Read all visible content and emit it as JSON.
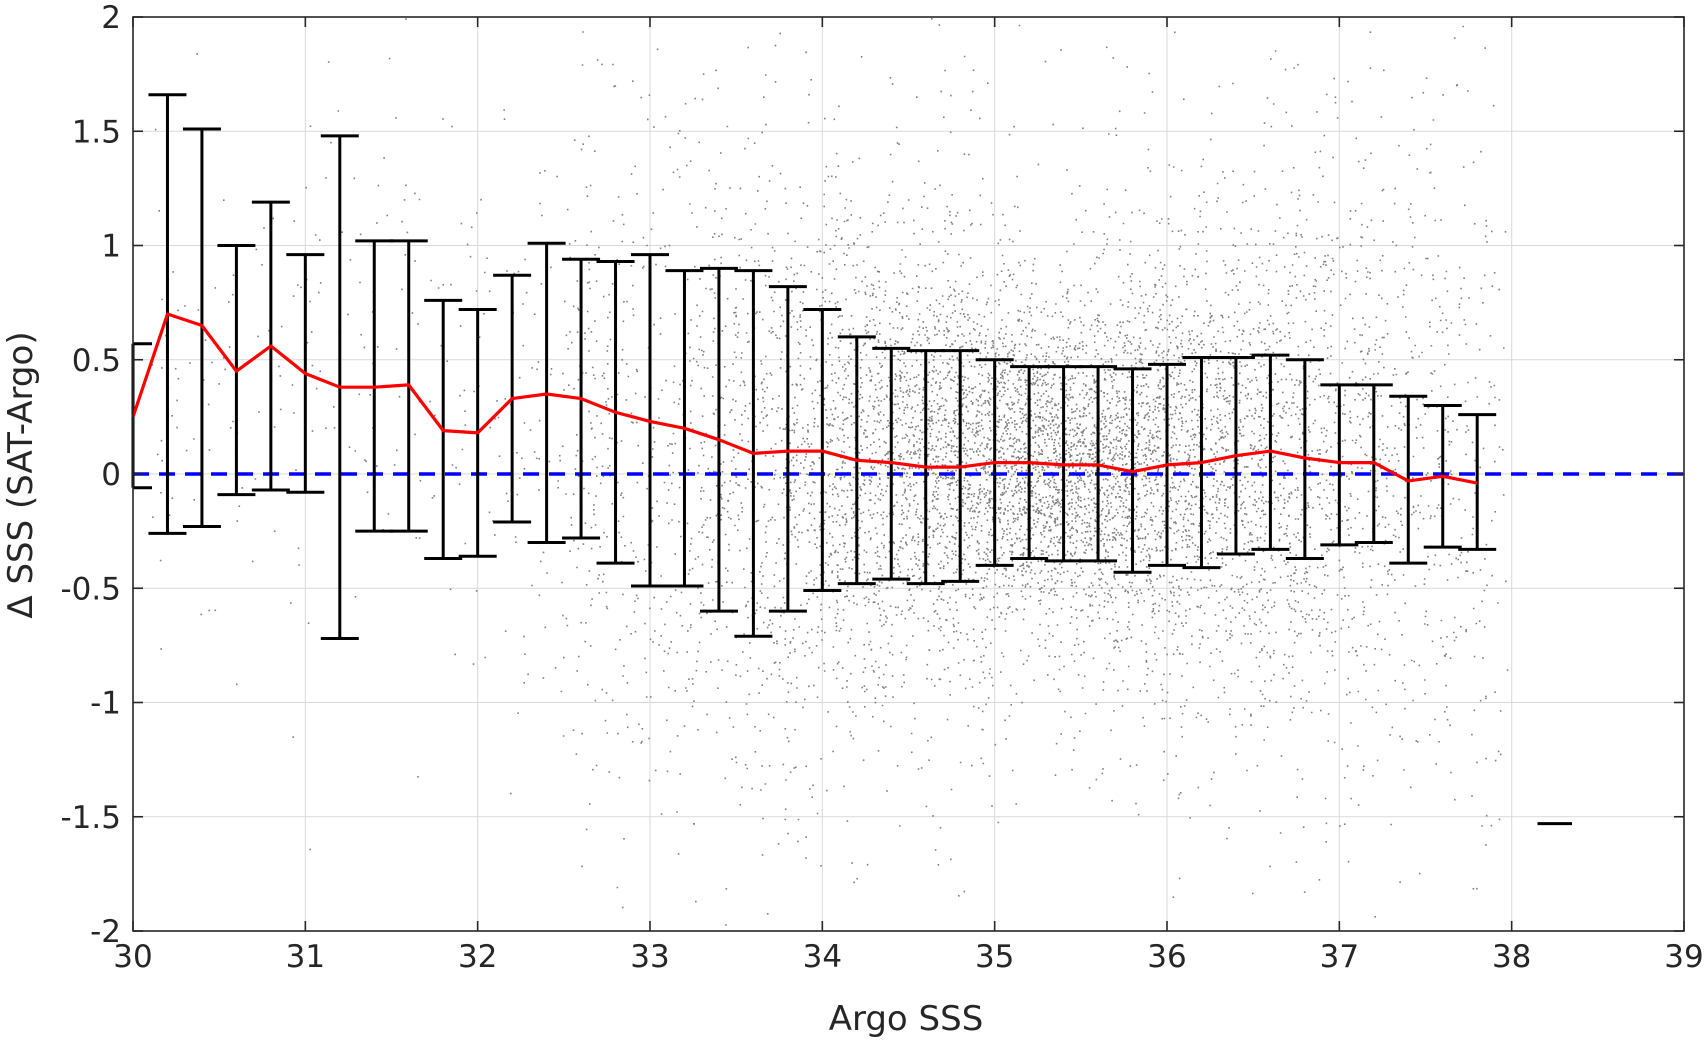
{
  "chart_data": {
    "type": "scatter",
    "title": "",
    "xlabel": "Argo SSS",
    "ylabel": "Δ SSS (SAT-Argo)",
    "xlim": [
      30,
      39
    ],
    "ylim": [
      -2,
      2
    ],
    "xticks": [
      "30",
      "31",
      "32",
      "33",
      "34",
      "35",
      "36",
      "37",
      "38",
      "39"
    ],
    "yticks": [
      "2",
      "1.5",
      "1",
      "0.5",
      "0",
      "-0.5",
      "-1",
      "-1.5",
      "-2"
    ],
    "grid": true,
    "legend": "none",
    "colors": {
      "scatter": "#808080",
      "mean_line": "#ff0000",
      "error_bars": "#000000",
      "zero_line": "#0000ff",
      "grid": "#d9d9d9",
      "axes": "#262626"
    },
    "zero_line": {
      "y": 0,
      "style": "dashed"
    },
    "scatter_density": {
      "description": "dense cloud of matchup points, densest between Argo SSS 34 and 37",
      "x_center": 35.3,
      "x_spread": 1.1,
      "y_center": 0.05,
      "y_spread": 0.45
    },
    "binned_stats": {
      "x": [
        30.0,
        30.2,
        30.4,
        30.6,
        30.8,
        31.0,
        31.2,
        31.4,
        31.6,
        31.8,
        32.0,
        32.2,
        32.4,
        32.6,
        32.8,
        33.0,
        33.2,
        33.4,
        33.6,
        33.8,
        34.0,
        34.2,
        34.4,
        34.6,
        34.8,
        35.0,
        35.2,
        35.4,
        35.6,
        35.8,
        36.0,
        36.2,
        36.4,
        36.6,
        36.8,
        37.0,
        37.2,
        37.4,
        37.6,
        37.8
      ],
      "mean": [
        0.25,
        0.7,
        0.65,
        0.45,
        0.56,
        0.44,
        0.38,
        0.38,
        0.39,
        0.19,
        0.18,
        0.33,
        0.35,
        0.33,
        0.27,
        0.23,
        0.2,
        0.15,
        0.09,
        0.1,
        0.1,
        0.06,
        0.05,
        0.03,
        0.03,
        0.05,
        0.05,
        0.04,
        0.04,
        0.01,
        0.04,
        0.05,
        0.08,
        0.1,
        0.07,
        0.05,
        0.05,
        -0.03,
        -0.01,
        -0.04
      ],
      "upper": [
        0.57,
        1.66,
        1.51,
        1.0,
        1.19,
        0.96,
        1.48,
        1.02,
        1.02,
        0.76,
        0.72,
        0.87,
        1.01,
        0.94,
        0.93,
        0.96,
        0.89,
        0.9,
        0.89,
        0.82,
        0.72,
        0.6,
        0.55,
        0.54,
        0.54,
        0.5,
        0.47,
        0.47,
        0.47,
        0.46,
        0.48,
        0.51,
        0.51,
        0.52,
        0.5,
        0.39,
        0.39,
        0.34,
        0.3,
        0.26
      ],
      "lower": [
        -0.06,
        -0.26,
        -0.23,
        -0.09,
        -0.07,
        -0.08,
        -0.72,
        -0.25,
        -0.25,
        -0.37,
        -0.36,
        -0.21,
        -0.3,
        -0.28,
        -0.39,
        -0.49,
        -0.49,
        -0.6,
        -0.71,
        -0.6,
        -0.51,
        -0.48,
        -0.46,
        -0.48,
        -0.47,
        -0.4,
        -0.37,
        -0.38,
        -0.38,
        -0.43,
        -0.4,
        -0.41,
        -0.35,
        -0.33,
        -0.37,
        -0.31,
        -0.3,
        -0.39,
        -0.32,
        -0.33
      ]
    },
    "annotations": [
      {
        "type": "horizontal-mark",
        "x_start": 38.15,
        "x_end": 38.35,
        "y": -1.53
      }
    ]
  }
}
